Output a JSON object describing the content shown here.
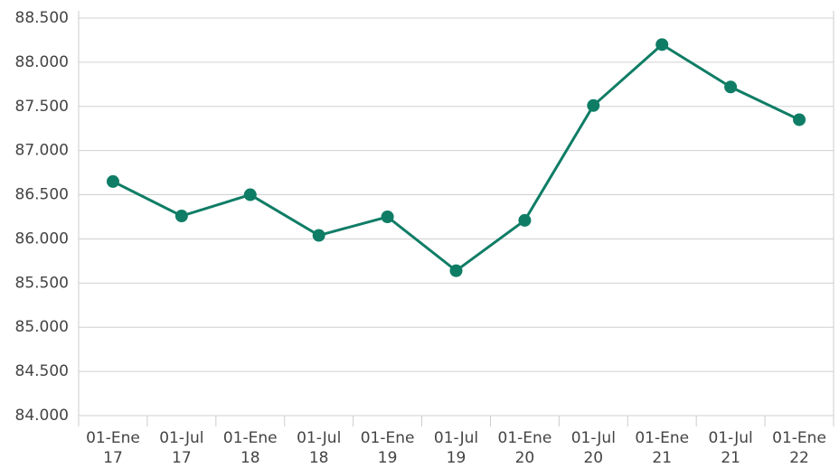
{
  "chart_data": {
    "type": "line",
    "categories": [
      "01-Ene 17",
      "01-Jul 17",
      "01-Ene 18",
      "01-Jul 18",
      "01-Ene 19",
      "01-Jul 19",
      "01-Ene 20",
      "01-Jul 20",
      "01-Ene 21",
      "01-Jul 21",
      "01-Ene 22"
    ],
    "series": [
      {
        "name": null,
        "color": "#0f7d66",
        "values": [
          86650,
          86260,
          86500,
          86040,
          86250,
          85640,
          86210,
          87510,
          88200,
          87720,
          87350
        ]
      }
    ],
    "ylim": [
      84000,
      88500
    ],
    "yticks": [
      {
        "value": 84000,
        "label": "84.000"
      },
      {
        "value": 84500,
        "label": "84.500"
      },
      {
        "value": 85000,
        "label": "85.000"
      },
      {
        "value": 85500,
        "label": "85.500"
      },
      {
        "value": 86000,
        "label": "86.000"
      },
      {
        "value": 86500,
        "label": "86.500"
      },
      {
        "value": 87000,
        "label": "87.000"
      },
      {
        "value": 87500,
        "label": "87.500"
      },
      {
        "value": 88000,
        "label": "88.000"
      },
      {
        "value": 88500,
        "label": "88.500"
      }
    ],
    "grid": true
  }
}
